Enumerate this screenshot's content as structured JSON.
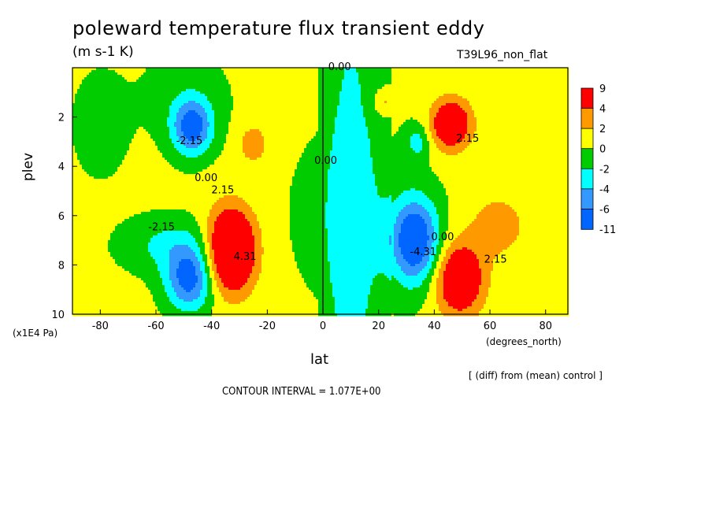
{
  "chart_data": {
    "type": "heatmap",
    "title": "poleward temperature flux transient eddy",
    "units": "(m s-1 K)",
    "experiment": "T39L96_non_flat",
    "xlabel": "lat",
    "xunits": "(degrees_north)",
    "ylabel": "plev",
    "yunits": "(x1E4 Pa)",
    "note": "[ (diff) from (mean) control ]",
    "contour_interval": "CONTOUR INTERVAL = 1.077E+00",
    "xlim": [
      -90,
      88
    ],
    "ylim": [
      10,
      0
    ],
    "xticks": [
      "-80",
      "-60",
      "-40",
      "-20",
      "0",
      "20",
      "40",
      "60",
      "80"
    ],
    "xtick_values": [
      -80,
      -60,
      -40,
      -20,
      0,
      20,
      40,
      60,
      80
    ],
    "yticks": [
      "2",
      "4",
      "6",
      "8",
      "10"
    ],
    "ytick_values": [
      2,
      4,
      6,
      8,
      10
    ],
    "colorbar": {
      "labels": [
        "9",
        "4",
        "2",
        "0",
        "-2",
        "-4",
        "-6",
        "-11"
      ],
      "colors": [
        "#ff0000",
        "#ff9900",
        "#ffff00",
        "#00cc00",
        "#00ffff",
        "#3399ff",
        "#0066ff"
      ]
    },
    "contour_labels": [
      {
        "text": "0.00",
        "x": 6,
        "y": 0.1
      },
      {
        "text": "-2.15",
        "x": -48,
        "y": 3.1
      },
      {
        "text": "0.00",
        "x": -42,
        "y": 4.6
      },
      {
        "text": "2.15",
        "x": -36,
        "y": 5.1
      },
      {
        "text": "0.00",
        "x": 1,
        "y": 3.9
      },
      {
        "text": "-2.15",
        "x": -58,
        "y": 6.6
      },
      {
        "text": "4.31",
        "x": -28,
        "y": 7.8
      },
      {
        "text": "2.15",
        "x": 52,
        "y": 3.0
      },
      {
        "text": "-4.31",
        "x": 36,
        "y": 7.6
      },
      {
        "text": "0.00",
        "x": 43,
        "y": 7.0
      },
      {
        "text": "2.15",
        "x": 62,
        "y": 7.9
      }
    ],
    "features": [
      {
        "kind": "positive",
        "center": [
          -33,
          7.4
        ],
        "peak": 9
      },
      {
        "kind": "positive",
        "center": [
          46,
          2.3
        ],
        "peak": 6
      },
      {
        "kind": "positive",
        "center": [
          49,
          8.5
        ],
        "peak": 7
      },
      {
        "kind": "negative",
        "center": [
          -47,
          2.3
        ],
        "peak": -7
      },
      {
        "kind": "negative",
        "center": [
          -48,
          8.6
        ],
        "peak": -7
      },
      {
        "kind": "negative",
        "center": [
          33,
          7.0
        ],
        "peak": -8
      }
    ]
  }
}
